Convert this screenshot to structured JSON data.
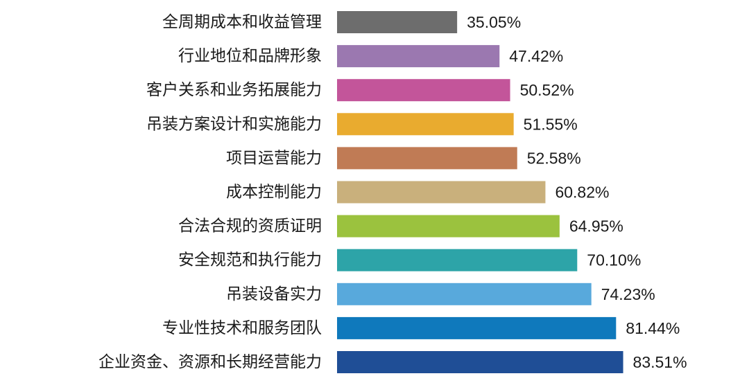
{
  "chart_data": {
    "type": "bar",
    "orientation": "horizontal",
    "categories": [
      "全周期成本和收益管理",
      "行业地位和品牌形象",
      "客户关系和业务拓展能力",
      "吊装方案设计和实施能力",
      "项目运营能力",
      "成本控制能力",
      "合法合规的资质证明",
      "安全规范和执行能力",
      "吊装设备实力",
      "专业性技术和服务团队",
      "企业资金、资源和长期经营能力"
    ],
    "values": [
      35.05,
      47.42,
      50.52,
      51.55,
      52.58,
      60.82,
      64.95,
      70.1,
      74.23,
      81.44,
      83.51
    ],
    "value_labels": [
      "35.05%",
      "47.42%",
      "50.52%",
      "51.55%",
      "52.58%",
      "60.82%",
      "64.95%",
      "70.10%",
      "74.23%",
      "81.44%",
      "83.51%"
    ],
    "colors": [
      "#6d6d6d",
      "#9b78b0",
      "#c3559a",
      "#e9ab2f",
      "#c07b55",
      "#c9b07c",
      "#9bc23e",
      "#2da4a8",
      "#58a9dc",
      "#0f79bc",
      "#1f4e96"
    ],
    "unit": "%",
    "xlim": [
      0,
      100
    ],
    "grid": false,
    "legend": "none"
  }
}
